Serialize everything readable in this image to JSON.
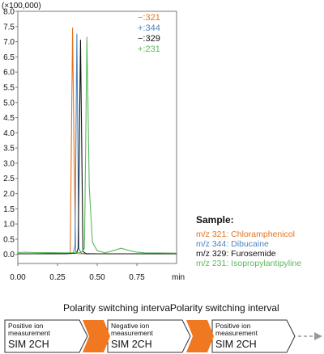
{
  "colors": {
    "orange": "#e8721c",
    "blue": "#4a84c4",
    "black": "#111111",
    "green": "#5cb85c",
    "switch": "#f07820",
    "arrow_gray": "#9a9a9a"
  },
  "chart_data": {
    "type": "line",
    "ylabel_multiplier": "(×100,000)",
    "xlabel_unit": "min",
    "xlim": [
      0.0,
      1.0
    ],
    "ylim": [
      -0.3,
      8.0
    ],
    "x_ticks": [
      "0.00",
      "0.25",
      "0.50",
      "0.75"
    ],
    "x_tick_values": [
      0.0,
      0.25,
      0.5,
      0.75
    ],
    "y_ticks": [
      "0.0",
      "0.5",
      "1.0",
      "1.5",
      "2.0",
      "2.5",
      "3.0",
      "3.5",
      "4.0",
      "4.5",
      "5.0",
      "5.5",
      "6.0",
      "6.5",
      "7.0",
      "7.5",
      "8.0"
    ],
    "y_tick_values": [
      0.0,
      0.5,
      1.0,
      1.5,
      2.0,
      2.5,
      3.0,
      3.5,
      4.0,
      4.5,
      5.0,
      5.5,
      6.0,
      6.5,
      7.0,
      7.5,
      8.0
    ],
    "legend": [
      {
        "label": "−:321",
        "color_key": "orange"
      },
      {
        "label": "+:344",
        "color_key": "blue"
      },
      {
        "label": "−:329",
        "color_key": "black"
      },
      {
        "label": "+:231",
        "color_key": "green"
      }
    ],
    "series": [
      {
        "name": "−:321",
        "color_key": "orange",
        "x": [
          0.0,
          0.1,
          0.2,
          0.3,
          0.33,
          0.345,
          0.355,
          0.365,
          0.38,
          0.5,
          0.75,
          1.0
        ],
        "y": [
          0.02,
          0.02,
          0.03,
          0.03,
          0.05,
          7.45,
          3.0,
          0.1,
          0.02,
          0.02,
          0.02,
          0.02
        ]
      },
      {
        "name": "+:344",
        "color_key": "blue",
        "x": [
          0.0,
          0.1,
          0.2,
          0.3,
          0.35,
          0.36,
          0.372,
          0.384,
          0.4,
          0.5,
          0.75,
          1.0
        ],
        "y": [
          0.02,
          0.02,
          0.02,
          0.02,
          0.04,
          0.3,
          7.25,
          0.2,
          0.03,
          0.02,
          0.02,
          0.02
        ]
      },
      {
        "name": "−:329",
        "color_key": "black",
        "x": [
          0.0,
          0.1,
          0.2,
          0.3,
          0.37,
          0.38,
          0.395,
          0.41,
          0.43,
          0.5,
          0.75,
          1.0
        ],
        "y": [
          0.02,
          0.02,
          0.02,
          0.02,
          0.04,
          0.2,
          7.05,
          0.1,
          0.02,
          0.02,
          0.02,
          0.02
        ]
      },
      {
        "name": "+:231",
        "color_key": "green",
        "x": [
          0.0,
          0.05,
          0.1,
          0.2,
          0.3,
          0.4,
          0.42,
          0.435,
          0.45,
          0.47,
          0.5,
          0.55,
          0.6,
          0.65,
          0.7,
          0.75,
          0.8,
          1.0
        ],
        "y": [
          0.06,
          0.07,
          0.06,
          0.06,
          0.05,
          0.06,
          0.2,
          7.15,
          2.2,
          0.4,
          0.12,
          0.05,
          0.12,
          0.2,
          0.13,
          0.07,
          0.05,
          0.04
        ]
      }
    ]
  },
  "sample": {
    "title": "Sample:",
    "lines": [
      {
        "text": "m/z 321: Chloramphenicol",
        "color_key": "orange"
      },
      {
        "text": "m/z 344: Dibucaine",
        "color_key": "blue"
      },
      {
        "text": "m/z 329: Furosemide",
        "color_key": "black"
      },
      {
        "text": "m/z 231: Isopropylantipyline",
        "color_key": "green"
      }
    ]
  },
  "flow": {
    "switch_label_1": "Polarity switching interval",
    "switch_label_2": "Polarity switching interval",
    "steps": [
      {
        "line1": "Positive ion",
        "line2": "measurement",
        "line3": "SIM 2CH"
      },
      {
        "line1": "Negative ion",
        "line2": "measurement",
        "line3": "SIM 2CH"
      },
      {
        "line1": "Positive ion",
        "line2": "measurement",
        "line3": "SIM 2CH"
      }
    ]
  }
}
